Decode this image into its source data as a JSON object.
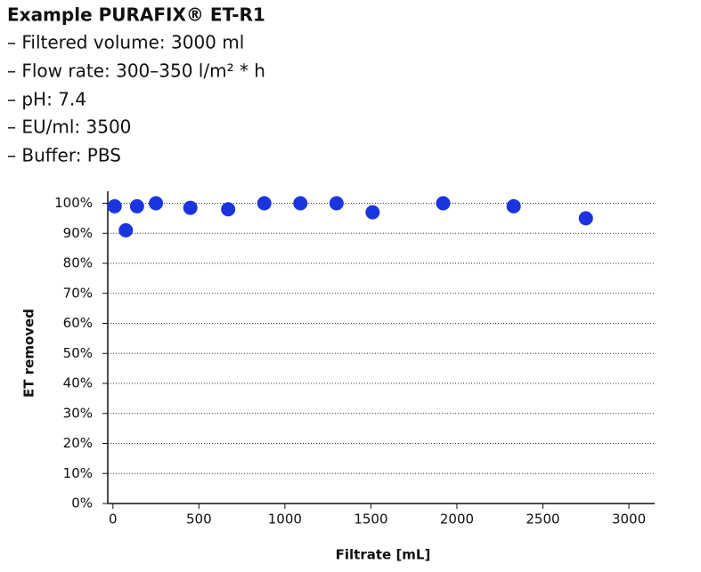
{
  "chart_data": {
    "type": "scatter",
    "title": "Example PURAFIX® ET-R1",
    "subtitle": [
      "– Filtered volume: 3000 ml",
      "– Flow rate: 300–350 l/m² * h",
      "– pH: 7.4",
      "– EU/ml: 3500",
      "– Buffer: PBS"
    ],
    "x_label": "Filtrate [mL]",
    "y_label": "ET removed",
    "x": [
      10,
      75,
      140,
      250,
      450,
      670,
      880,
      1090,
      1300,
      1510,
      1920,
      2330,
      2750
    ],
    "values": [
      99,
      91,
      99,
      100,
      98.5,
      98,
      100,
      100,
      100,
      97,
      100,
      99,
      95
    ],
    "color": "#1a35e0",
    "xlim": [
      -30,
      3150
    ],
    "xticks": [
      0,
      500,
      1000,
      1500,
      2000,
      2500,
      3000
    ],
    "ylim": [
      0,
      104
    ],
    "yticks": [
      {
        "value": 0,
        "label": "0%"
      },
      {
        "value": 10,
        "label": "10%"
      },
      {
        "value": 20,
        "label": "20%"
      },
      {
        "value": 30,
        "label": "30%"
      },
      {
        "value": 40,
        "label": "40%"
      },
      {
        "value": 50,
        "label": "50%"
      },
      {
        "value": 60,
        "label": "60%"
      },
      {
        "value": 70,
        "label": "70%"
      },
      {
        "value": 80,
        "label": "80%"
      },
      {
        "value": 90,
        "label": "90%"
      },
      {
        "value": 100,
        "label": "100%"
      }
    ],
    "grid": true
  }
}
